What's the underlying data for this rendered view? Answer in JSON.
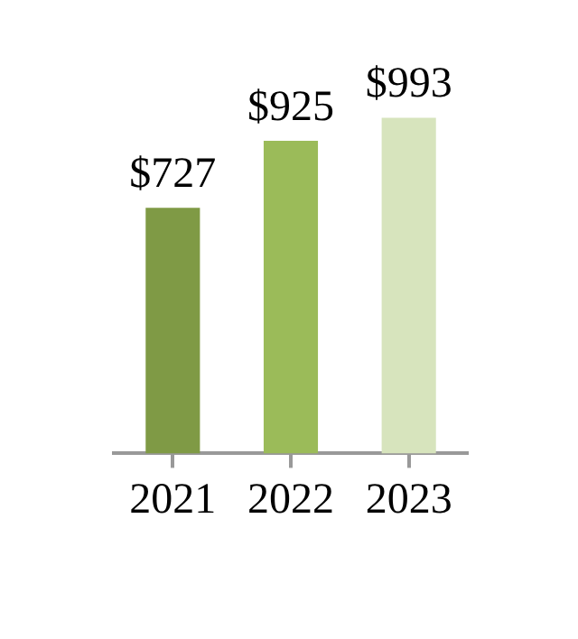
{
  "chart_data": {
    "type": "bar",
    "categories": [
      "2021",
      "2022",
      "2023"
    ],
    "values": [
      727,
      925,
      993
    ],
    "colors": [
      "#7f9a45",
      "#9bbb59",
      "#d7e4bd"
    ],
    "data_labels": true,
    "value_labels": [
      "$727",
      "$925",
      "$993"
    ],
    "grid": false,
    "legend": false
  }
}
